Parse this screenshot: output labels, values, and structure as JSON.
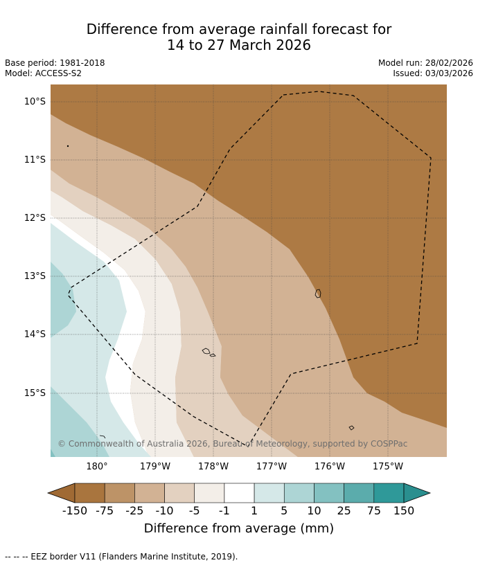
{
  "title": {
    "line1": "Difference from average rainfall forecast for",
    "line2": "14 to 27 March 2026"
  },
  "meta": {
    "base_period": "Base period: 1981-2018",
    "model": "Model: ACCESS-S2",
    "model_run": "Model run: 28/02/2026",
    "issued": "Issued: 03/03/2026"
  },
  "map": {
    "lat_labels": [
      "10°S",
      "11°S",
      "12°S",
      "13°S",
      "14°S",
      "15°S"
    ],
    "lon_labels": [
      "180°",
      "179°W",
      "178°W",
      "177°W",
      "176°W",
      "175°W"
    ],
    "copyright": "© Commonwealth of Australia 2026, Bureau of Meteorology, supported by COSPPac",
    "colors": {
      "lt_-75": "#ad7a44",
      "-75_-25": "#bd9367",
      "-25_-10": "#d2b294",
      "-10_-5": "#e3d1c0",
      "-5_-1": "#f3eee8",
      "-1_1": "#ffffff",
      "1_5": "#d5e8e8",
      "5_10": "#add5d5",
      "10_25": "#83c1c1",
      "25_75": "#5bacac",
      "75_150": "#2f9999"
    }
  },
  "colorbar": {
    "labels": [
      "-150",
      "-75",
      "-25",
      "-10",
      "-5",
      "-1",
      "1",
      "5",
      "10",
      "25",
      "75",
      "150"
    ],
    "colors": [
      "#a9753e",
      "#bd9367",
      "#d2b294",
      "#e3d1c0",
      "#f3eee8",
      "#ffffff",
      "#d5e8e8",
      "#add5d5",
      "#83c1c1",
      "#5bacac",
      "#2f9999"
    ],
    "extend_low_color": "#a06a34",
    "extend_high_color": "#2a8f8f",
    "title": "Difference from average (mm)"
  },
  "footnote": "--  --  -- EEZ border V11 (Flanders Marine Institute, 2019)."
}
